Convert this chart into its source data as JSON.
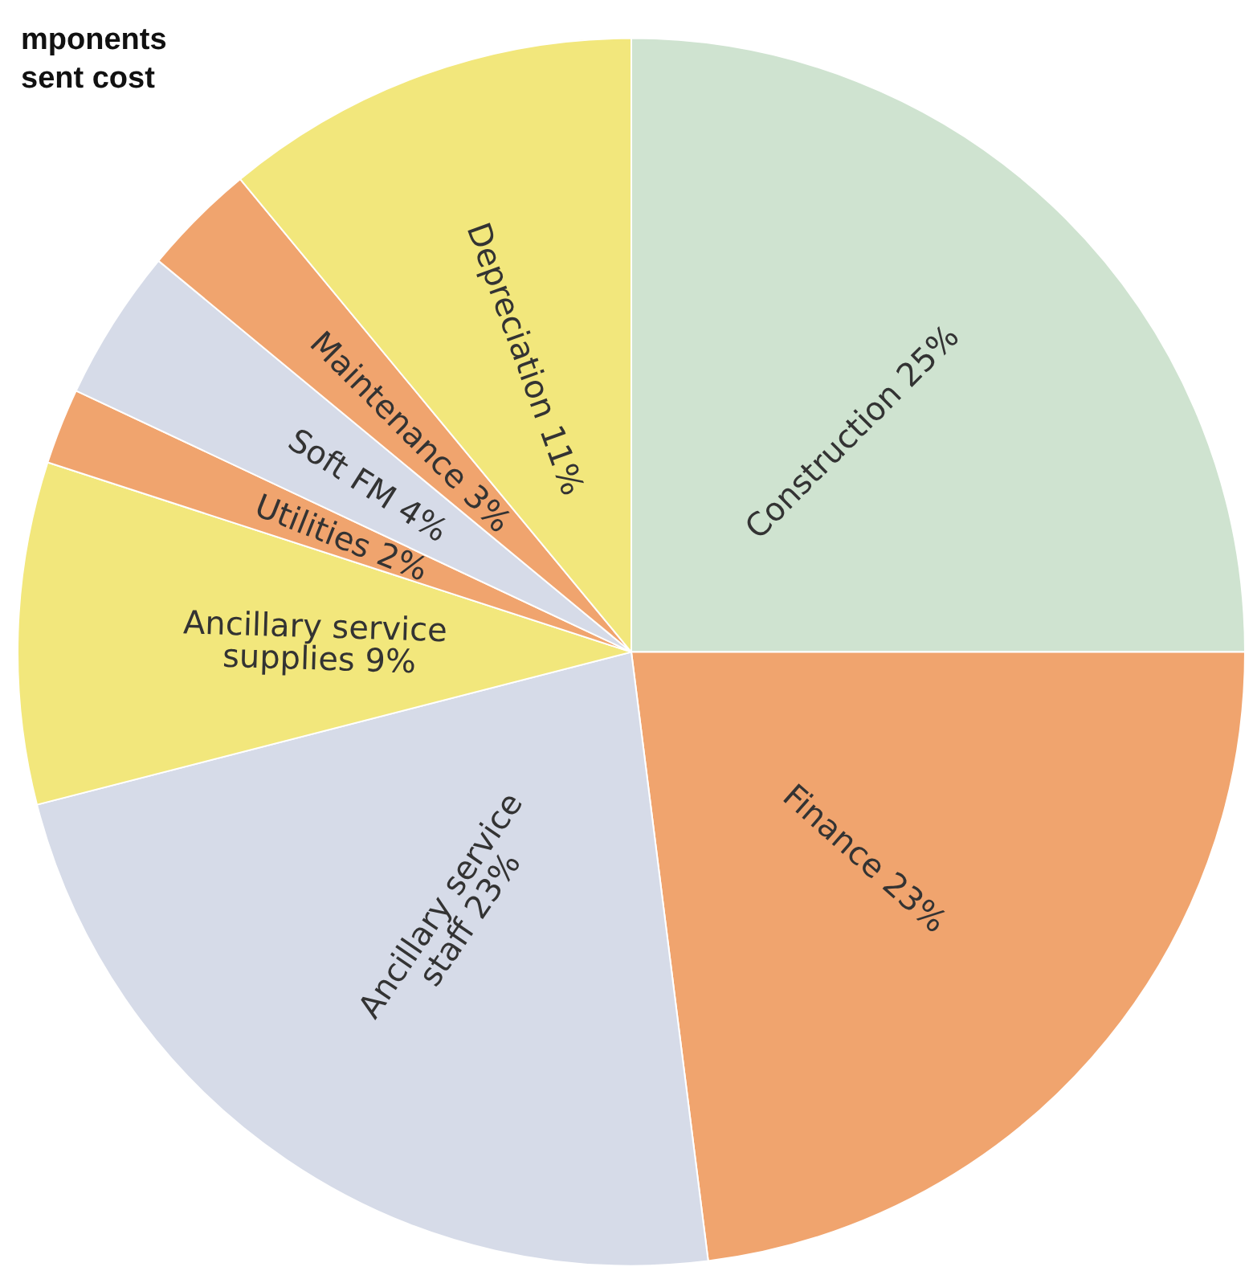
{
  "chart_data": {
    "type": "pie",
    "title": "mponents\nsent cost",
    "categories": [
      "Construction",
      "Finance",
      "Ancillary service staff",
      "Ancillary service supplies",
      "Utilities",
      "Soft FM",
      "Maintenance",
      "Depreciation"
    ],
    "values": [
      25,
      23,
      23,
      9,
      2,
      4,
      3,
      11
    ],
    "colors": [
      "#cfe3d0",
      "#f0a46e",
      "#d6dbe8",
      "#f2e77c",
      "#f0a46e",
      "#d6dbe8",
      "#f0a46e",
      "#f2e77c"
    ],
    "value_labels": [
      "25%",
      "23%",
      "23%",
      "9%",
      "2%",
      "4%",
      "3%",
      "11%"
    ],
    "legend": false
  }
}
